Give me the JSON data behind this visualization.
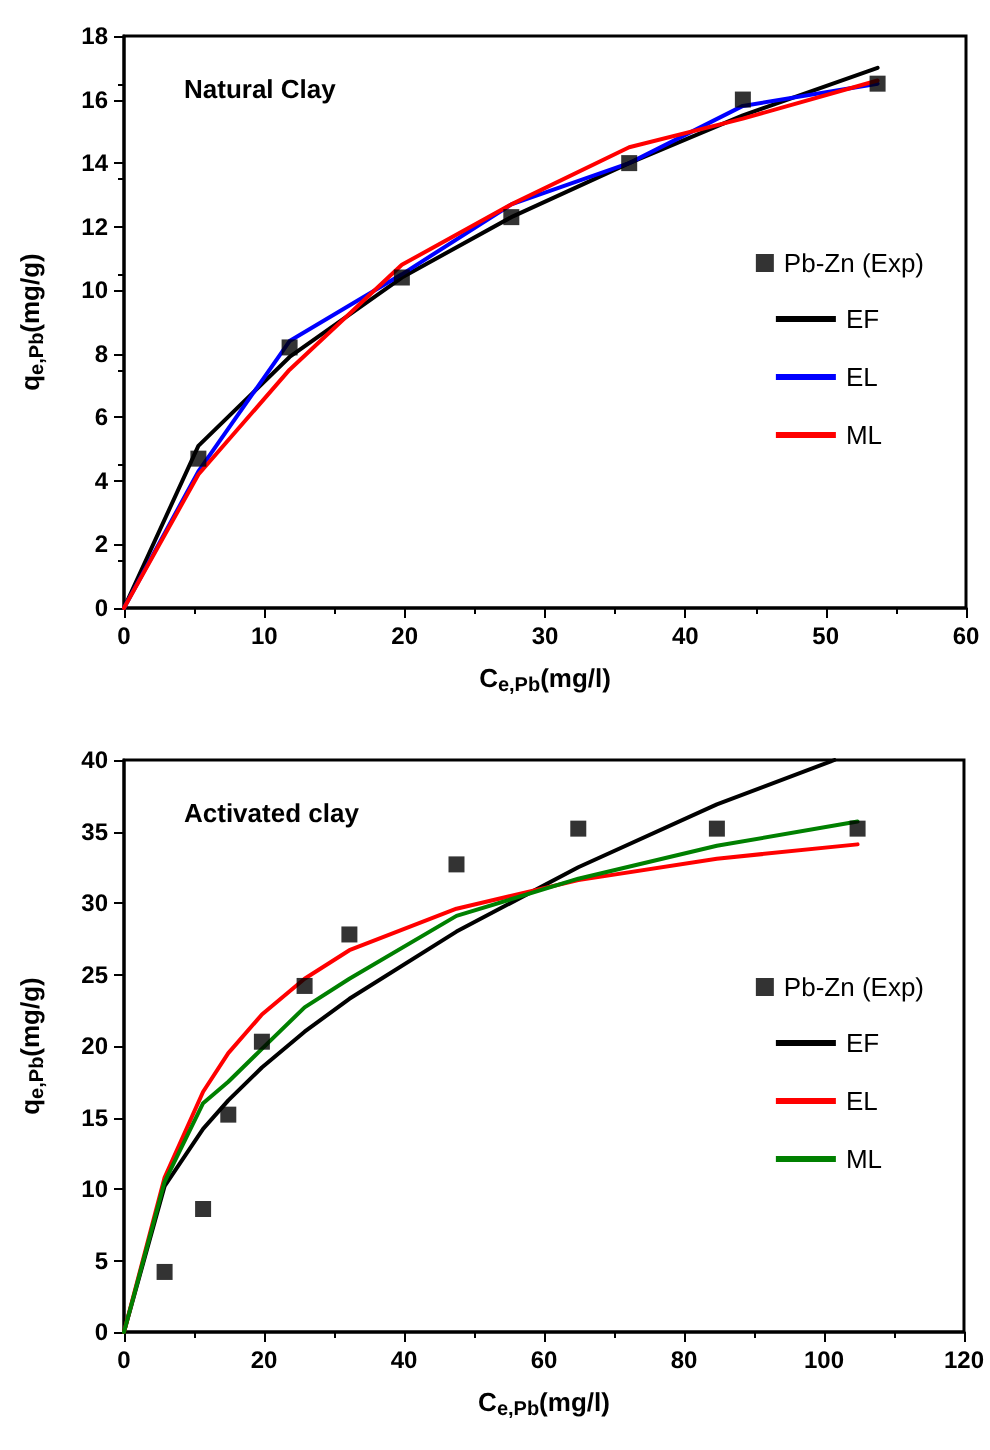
{
  "chart_data": [
    {
      "type": "line",
      "annotations": [
        "Natural Clay"
      ],
      "xlabel": "C$_{e,Pb}$(mg/l)",
      "ylabel": "q$_{e,Pb}$(mg/g)",
      "xlim": [
        0,
        60
      ],
      "xticks": [
        0,
        10,
        20,
        30,
        40,
        50,
        60
      ],
      "ylim": [
        0,
        18
      ],
      "yticks": [
        0,
        2,
        4,
        6,
        8,
        10,
        12,
        14,
        16,
        18
      ],
      "grid": false,
      "legend": "right",
      "series": [
        {
          "name": "Pb-Zn (Exp)",
          "type": "scatter",
          "marker": "square",
          "color": "#000000",
          "x": [
            5.3,
            11.8,
            19.8,
            27.6,
            36,
            44.1,
            53.7
          ],
          "values": [
            4.7,
            8.2,
            10.4,
            12.3,
            14,
            16,
            16.5
          ]
        },
        {
          "name": "EF",
          "marker": "none",
          "color": "#000000",
          "x": [
            0,
            5.3,
            11.8,
            19.8,
            27.6,
            36,
            44.1,
            53.7
          ],
          "values": [
            0,
            5.1,
            7.9,
            10.4,
            12.3,
            14,
            15.5,
            17
          ]
        },
        {
          "name": "EL",
          "marker": "none",
          "color": "#0000ff",
          "x": [
            0,
            5.3,
            11.8,
            19.8,
            27.6,
            36,
            44.1,
            53.7
          ],
          "values": [
            0,
            4.3,
            8.4,
            10.5,
            12.7,
            14,
            15.8,
            16.5
          ]
        },
        {
          "name": "ML",
          "marker": "none",
          "color": "#ff0000",
          "x": [
            0,
            5.3,
            11.8,
            19.8,
            27.6,
            36,
            44.1,
            53.7
          ],
          "values": [
            0,
            4.2,
            7.5,
            10.8,
            12.7,
            14.5,
            15.4,
            16.6
          ]
        }
      ]
    },
    {
      "type": "line",
      "annotations": [
        "Activated clay"
      ],
      "xlabel": "C$_{e,Pb}$(mg/l)",
      "ylabel": "q$_{e,Pb}$(mg/g)",
      "xlim": [
        0,
        120
      ],
      "xticks": [
        0,
        20,
        40,
        60,
        80,
        100,
        120
      ],
      "ylim": [
        0,
        40
      ],
      "yticks": [
        0,
        5,
        10,
        15,
        20,
        25,
        30,
        35,
        40
      ],
      "grid": false,
      "legend": "right",
      "series": [
        {
          "name": "Pb-Zn (Exp)",
          "type": "scatter",
          "marker": "square",
          "color": "#000000",
          "x": [
            5.8,
            11.3,
            14.9,
            19.7,
            25.8,
            32.2,
            47.5,
            64.9,
            84.7,
            104.8
          ],
          "values": [
            4.2,
            8.6,
            15.2,
            20.3,
            24.2,
            27.8,
            32.7,
            35.2,
            35.2,
            35.2
          ]
        },
        {
          "name": "EF",
          "marker": "none",
          "color": "#000000",
          "x": [
            0,
            5.8,
            11.3,
            14.9,
            19.7,
            25.8,
            32.2,
            47.5,
            64.9,
            84.7,
            101.5
          ],
          "values": [
            0,
            10.2,
            14.2,
            16.2,
            18.5,
            21,
            23.3,
            28,
            32.5,
            36.9,
            40
          ]
        },
        {
          "name": "EL",
          "marker": "none",
          "color": "#ff0000",
          "x": [
            0,
            5.8,
            11.3,
            14.9,
            19.7,
            25.8,
            32.2,
            47.5,
            64.9,
            84.7,
            104.8
          ],
          "values": [
            0,
            10.8,
            16.8,
            19.5,
            22.2,
            24.7,
            26.7,
            29.6,
            31.6,
            33.1,
            34.1
          ]
        },
        {
          "name": "ML",
          "marker": "none",
          "color": "#008000",
          "x": [
            0,
            5.8,
            11.3,
            14.9,
            19.7,
            25.8,
            32.2,
            47.5,
            64.9,
            84.7,
            104.8
          ],
          "values": [
            0,
            10.5,
            16,
            17.5,
            19.8,
            22.7,
            24.7,
            29.1,
            31.7,
            34,
            35.7
          ]
        }
      ]
    }
  ]
}
